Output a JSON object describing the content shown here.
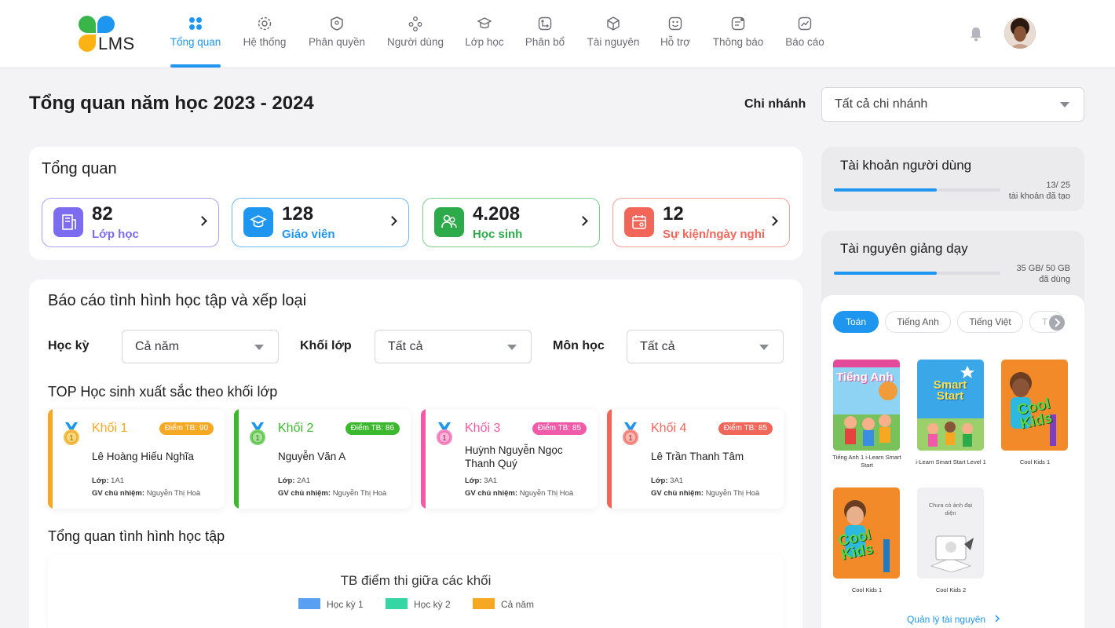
{
  "app": {
    "logo_text": "LMS"
  },
  "nav": {
    "items": [
      {
        "label": "Tổng quan",
        "icon": "grid-icon"
      },
      {
        "label": "Hệ thống",
        "icon": "gear-icon"
      },
      {
        "label": "Phân quyền",
        "icon": "shield-icon"
      },
      {
        "label": "Người dùng",
        "icon": "users-icon"
      },
      {
        "label": "Lớp học",
        "icon": "graduation-cap-icon"
      },
      {
        "label": "Phân bổ",
        "icon": "distribute-icon"
      },
      {
        "label": "Tài nguyên",
        "icon": "cube-icon"
      },
      {
        "label": "Hỗ trợ",
        "icon": "support-icon"
      },
      {
        "label": "Thông báo",
        "icon": "notification-icon"
      },
      {
        "label": "Báo cáo",
        "icon": "report-icon"
      }
    ],
    "active_index": 0
  },
  "page": {
    "title": "Tổng quan năm học 2023 - 2024",
    "branch_label": "Chi nhánh",
    "branch_value": "Tất cả chi nhánh"
  },
  "overview": {
    "title": "Tổng quan",
    "stats": [
      {
        "value": "82",
        "label": "Lớp học",
        "color": "#7b6cf0"
      },
      {
        "value": "128",
        "label": "Giáo viên",
        "color": "#1e96f0"
      },
      {
        "value": "4.208",
        "label": "Học sinh",
        "color": "#2daa4a"
      },
      {
        "value": "12",
        "label": "Sự kiện/ngày nghỉ",
        "color": "#f2665a"
      }
    ]
  },
  "report": {
    "title": "Báo cáo tình hình học tập và xếp loại",
    "filters": {
      "semester_label": "Học kỳ",
      "semester_value": "Cả năm",
      "grade_label": "Khối lớp",
      "grade_value": "Tất cả",
      "subject_label": "Môn học",
      "subject_value": "Tất cả"
    },
    "top_title": "TOP Học sinh xuất sắc theo khối lớp",
    "top_students": [
      {
        "grade": "Khối 1",
        "badge": "Điểm TB: 90",
        "name": "Lê Hoàng Hiếu Nghĩa",
        "class_label": "Lớp:",
        "class_value": "1A1",
        "teacher_label": "GV chủ nhiệm:",
        "teacher_value": "Nguyễn Thị Hoà",
        "color": "#f7a823"
      },
      {
        "grade": "Khối 2",
        "badge": "Điểm TB: 86",
        "name": "Nguyễn Văn A",
        "class_label": "Lớp:",
        "class_value": "2A1",
        "teacher_label": "GV chủ nhiệm:",
        "teacher_value": "Nguyễn Thị Hoà",
        "color": "#3cb82e"
      },
      {
        "grade": "Khối 3",
        "badge": "Điểm TB: 85",
        "name": "Huỳnh Nguyễn Ngọc Thanh Quý",
        "class_label": "Lớp:",
        "class_value": "3A1",
        "teacher_label": "GV chủ nhiệm:",
        "teacher_value": "Nguyễn Thị Hoà",
        "color": "#f05aa8"
      },
      {
        "grade": "Khối 4",
        "badge": "Điểm TB: 85",
        "name": "Lê Trần Thanh Tâm",
        "class_label": "Lớp:",
        "class_value": "3A1",
        "teacher_label": "GV chủ nhiệm:",
        "teacher_value": "Nguyễn Thị Hoà",
        "color": "#f2665a"
      }
    ],
    "study_title": "Tổng quan tình hình học tập",
    "chart_title": "TB điểm thi giữa các khối",
    "legend": [
      {
        "label": "Học kỳ 1",
        "color": "#5aa0f2"
      },
      {
        "label": "Học kỳ 2",
        "color": "#34d6a4"
      },
      {
        "label": "Cả năm",
        "color": "#f7a823"
      }
    ]
  },
  "accounts": {
    "title": "Tài khoản người dùng",
    "progress_text": "13/ 25",
    "progress_sub": "tài khoản đã tạo",
    "progress_fraction": 0.52
  },
  "resources": {
    "title": "Tài nguyên giảng dạy",
    "progress_text": "35 GB/ 50 GB",
    "progress_sub": "đã dùng",
    "progress_fraction": 0.7,
    "tabs": [
      "Toán",
      "Tiếng Anh",
      "Tiếng Việt",
      "T"
    ],
    "books": [
      {
        "caption": "Tiếng Anh 1 i-Learn Smart Start",
        "cover_text": "Tiếng Anh"
      },
      {
        "caption": "i-Learn Smart Start Level 1",
        "cover_text": "Smart Start"
      },
      {
        "caption": "Cool Kids 1",
        "cover_text": "Cool Kids"
      },
      {
        "caption": "Cool Kids 1",
        "cover_text": "Cool Kids"
      },
      {
        "caption": "Cool Kids 2",
        "cover_text": "Chưa có ảnh đại diện"
      }
    ],
    "manage_link": "Quản lý tài nguyên"
  }
}
